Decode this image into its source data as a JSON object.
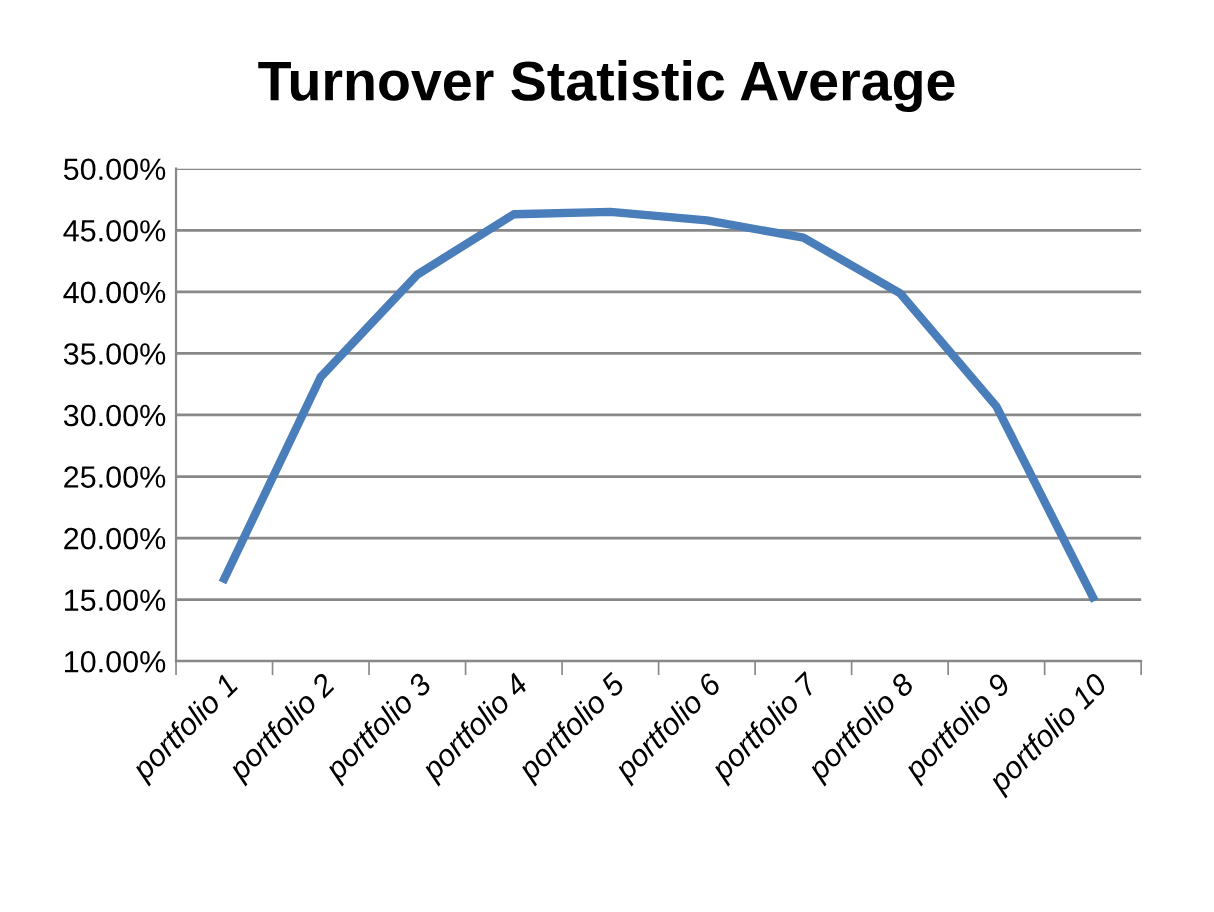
{
  "chart_data": {
    "type": "line",
    "title": "Turnover Statistic Average",
    "categories": [
      "portfolio 1",
      "portfolio 2",
      "portfolio 3",
      "portfolio 4",
      "portfolio 5",
      "portfolio 6",
      "portfolio 7",
      "portfolio 8",
      "portfolio 9",
      "portfolio 10"
    ],
    "series": [
      {
        "color": "#4a7ebb",
        "values": [
          16.7,
          33.1,
          41.4,
          46.3,
          46.5,
          45.8,
          44.4,
          39.9,
          30.7,
          15.2
        ]
      }
    ],
    "ylim": [
      10,
      50
    ],
    "yticks": [
      {
        "value": 10,
        "label": "10.00%"
      },
      {
        "value": 15,
        "label": "15.00%"
      },
      {
        "value": 20,
        "label": "20.00%"
      },
      {
        "value": 25,
        "label": "25.00%"
      },
      {
        "value": 30,
        "label": "30.00%"
      },
      {
        "value": 35,
        "label": "35.00%"
      },
      {
        "value": 40,
        "label": "40.00%"
      },
      {
        "value": 45,
        "label": "45.00%"
      },
      {
        "value": 50,
        "label": "50.00%"
      }
    ],
    "grid": "y",
    "marker": "none",
    "line_style": "solid"
  }
}
